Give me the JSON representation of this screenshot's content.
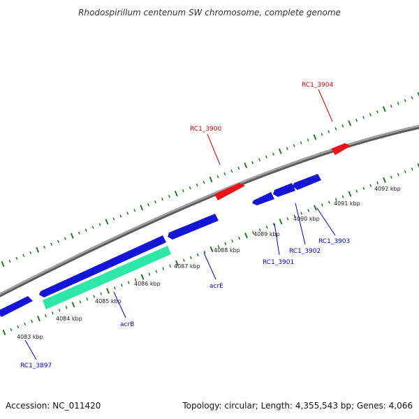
{
  "title": "Rhodospirillum centenum SW chromosome, complete genome",
  "footer": {
    "accession": "Accession: NC_011420",
    "summary": "Topology: circular; Length: 4,355,543 bp; Genes: 4,066"
  },
  "colors": {
    "backbone": "#8c8c8c",
    "tick": "#1f7a1f",
    "forward_gene": "#e8141c",
    "reverse_gene": "#1414d6",
    "highlight_gene": "#2ee8a8",
    "forward_label": "#cc0000",
    "reverse_label": "#0000cc"
  },
  "tick_labels": [
    "4083 kbp",
    "4084 kbp",
    "4085 kbp",
    "4086 kbp",
    "4087 kbp",
    "4088 kbp",
    "4089 kbp",
    "4090 kbp",
    "4091 kbp",
    "4092 kbp"
  ],
  "genes": [
    {
      "label": "",
      "strand": "reverse",
      "highlight": false
    },
    {
      "label": "acrB",
      "strand": "reverse",
      "highlight": false
    },
    {
      "label": "",
      "strand": "reverse",
      "highlight": true
    },
    {
      "label": "acrE",
      "strand": "reverse",
      "highlight": false
    },
    {
      "label": "RC1_3900",
      "strand": "forward",
      "highlight": false
    },
    {
      "label": "RC1_3901",
      "strand": "reverse",
      "highlight": false
    },
    {
      "label": "RC1_3902",
      "strand": "reverse",
      "highlight": false
    },
    {
      "label": "RC1_3903",
      "strand": "reverse",
      "highlight": false
    },
    {
      "label": "RC1_3904",
      "strand": "forward",
      "highlight": false
    }
  ],
  "extra_labels": [
    {
      "label": "RC1_3897",
      "strand": "reverse"
    }
  ]
}
